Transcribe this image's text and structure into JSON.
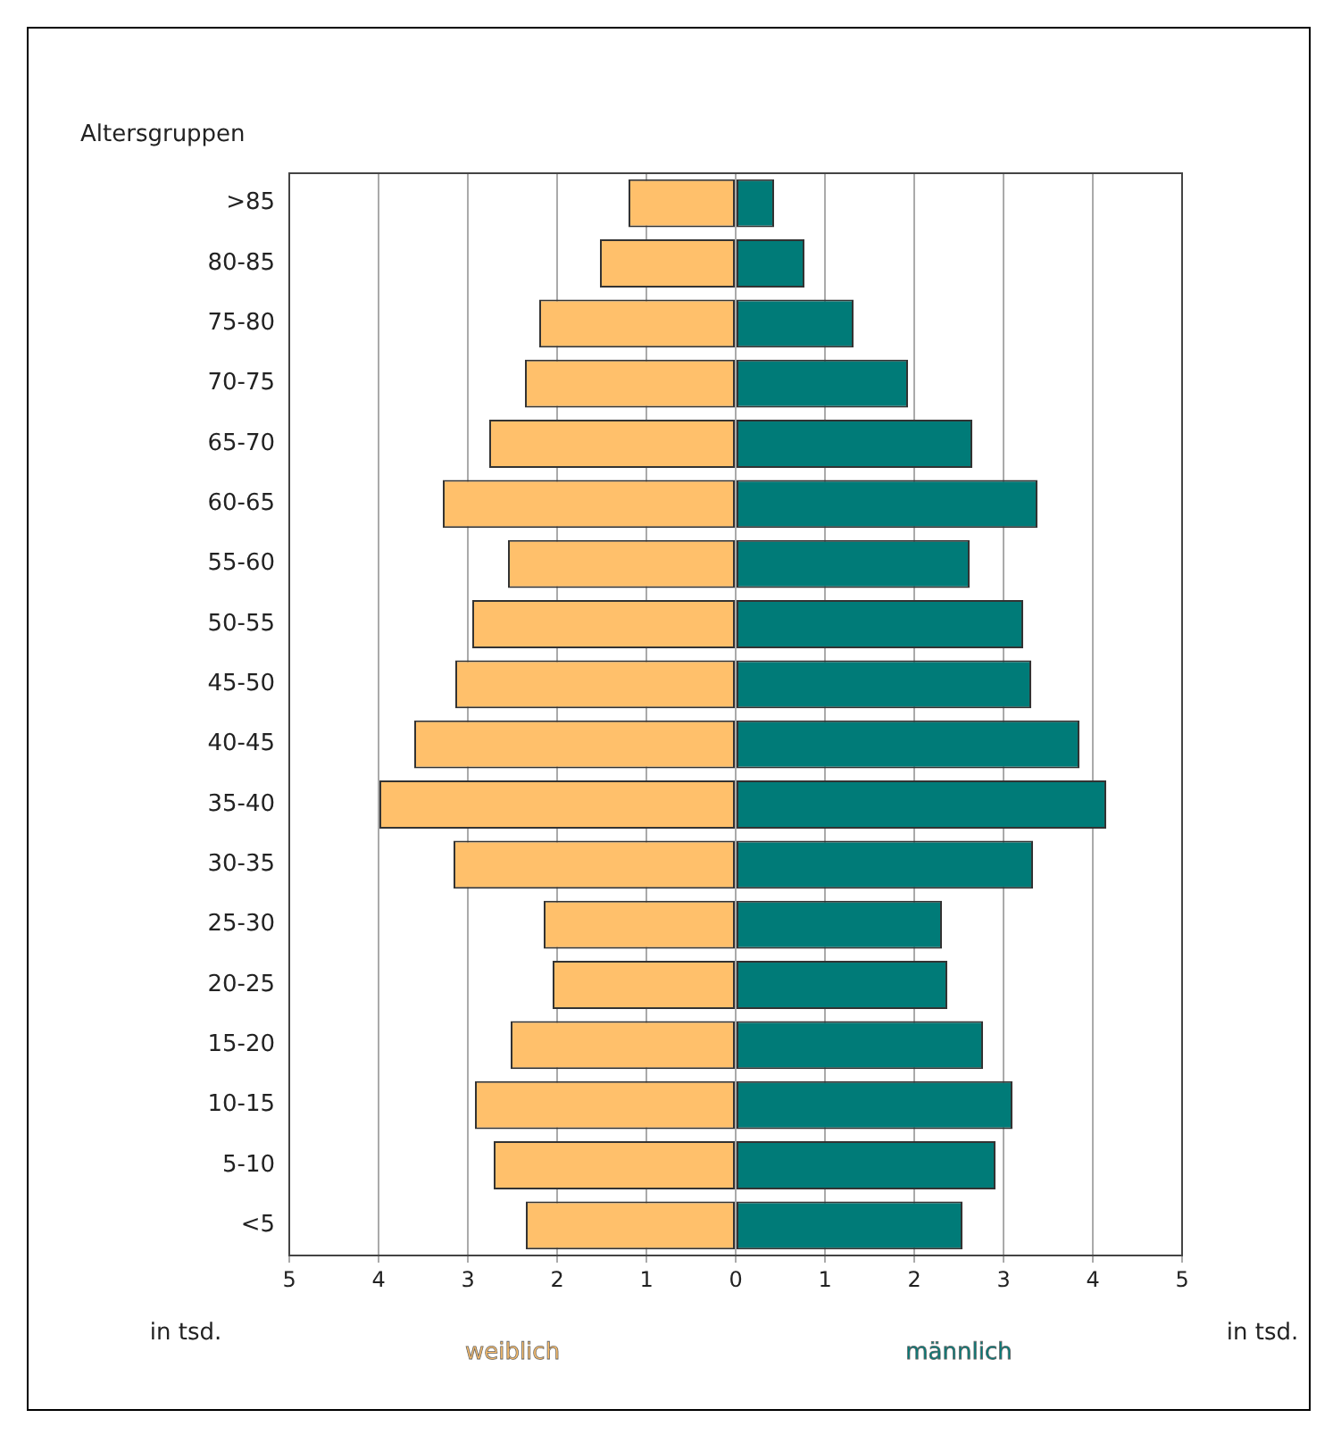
{
  "chart_data": {
    "type": "bar",
    "orientation": "horizontal",
    "stacked": true,
    "ylabel": "Altersgruppen",
    "xlabel": "in tsd.",
    "categories": [
      ">85",
      "80-85",
      "75-80",
      "70-75",
      "65-70",
      "60-65",
      "55-60",
      "50-55",
      "45-50",
      "40-45",
      "35-40",
      "30-35",
      "25-30",
      "20-25",
      "15-20",
      "10-15",
      "5-10",
      "<5"
    ],
    "series": [
      {
        "name": "weiblich",
        "color": "#ffc06b",
        "values": [
          -1.2,
          -1.52,
          -2.2,
          -2.36,
          -2.76,
          -3.28,
          -2.55,
          -2.95,
          -3.14,
          -3.6,
          -3.99,
          -3.16,
          -2.15,
          -2.05,
          -2.52,
          -2.92,
          -2.71,
          -2.35
        ]
      },
      {
        "name": "männlich",
        "color": "#007b78",
        "values": [
          0.43,
          0.77,
          1.32,
          1.93,
          2.65,
          3.38,
          2.62,
          3.22,
          3.31,
          3.85,
          4.15,
          3.33,
          2.31,
          2.37,
          2.77,
          3.1,
          2.91,
          2.54
        ]
      }
    ],
    "xlim": [
      -5,
      5
    ],
    "xticks": [
      {
        "value": -5,
        "label": "5"
      },
      {
        "value": -4,
        "label": "4"
      },
      {
        "value": -3,
        "label": "3"
      },
      {
        "value": -2,
        "label": "2"
      },
      {
        "value": -1,
        "label": "1"
      },
      0,
      1,
      2,
      3,
      4,
      5
    ],
    "grid": "x",
    "legend": false
  }
}
